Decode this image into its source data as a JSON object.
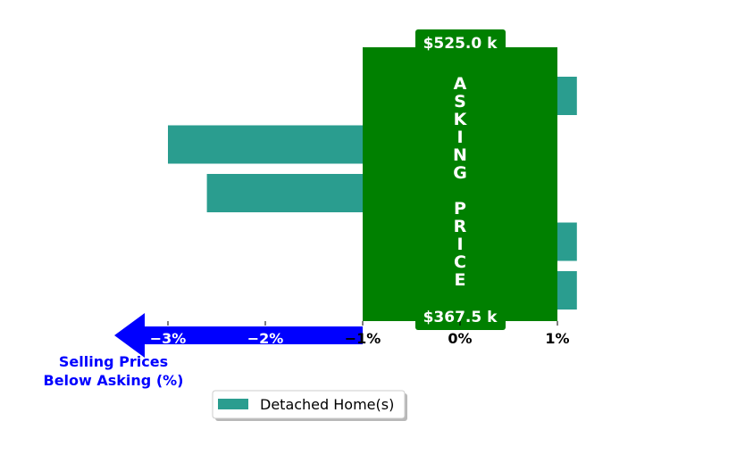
{
  "chart_data": {
    "type": "bar",
    "orientation": "horizontal",
    "series": [
      {
        "name": "Detached Home(s)",
        "color": "#2a9d8f",
        "values": [
          1.2,
          -3.0,
          -2.6,
          1.2,
          1.2
        ]
      }
    ],
    "xlim": [
      -3.6,
      1.2
    ],
    "x_ticks": [
      -3,
      -2,
      -1,
      0,
      1
    ],
    "x_tick_labels": [
      "−3%",
      "−2%",
      "−1%",
      "0%",
      "1%"
    ],
    "asking_band": {
      "range": [
        -1,
        1
      ],
      "color": "#008000",
      "vertical_text": "ASKING PRICE",
      "top_label": "$525.0 k",
      "bottom_label": "$367.5 k"
    },
    "below_arrow": {
      "color": "#0000ff",
      "caption_lines": [
        "Selling Prices",
        "Below Asking (%)"
      ]
    },
    "legend": {
      "position": "bottom-center",
      "entries": [
        "Detached Home(s)"
      ]
    }
  }
}
